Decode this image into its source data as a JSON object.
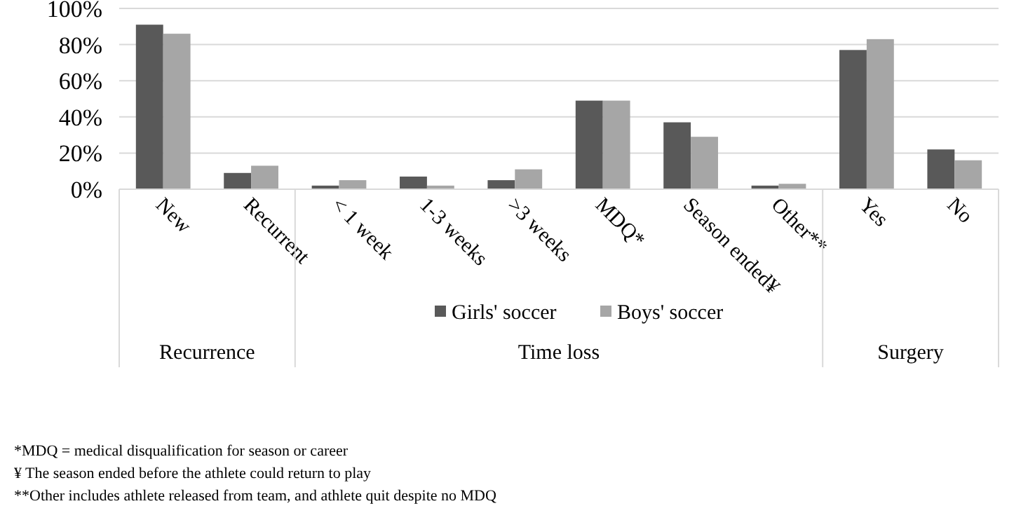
{
  "chart_data": {
    "type": "bar",
    "categories": [
      "New",
      "Recurrent",
      "< 1 week",
      "1-3 weeks",
      ">3 weeks",
      "MDQ*",
      "Season ended¥",
      "Other**",
      "Yes",
      "No"
    ],
    "series": [
      {
        "name": "Girls' soccer",
        "color": "#595959",
        "values": [
          91,
          9,
          2,
          7,
          5,
          49,
          37,
          2,
          77,
          22
        ]
      },
      {
        "name": "Boys' soccer",
        "color": "#a6a6a6",
        "values": [
          86,
          13,
          5,
          2,
          11,
          49,
          29,
          3,
          83,
          16
        ]
      }
    ],
    "ylim": [
      0,
      100
    ],
    "yticks": [
      {
        "value": 0,
        "label": "0%"
      },
      {
        "value": 20,
        "label": "20%"
      },
      {
        "value": 40,
        "label": "40%"
      },
      {
        "value": 60,
        "label": "60%"
      },
      {
        "value": 80,
        "label": "80%"
      },
      {
        "value": 100,
        "label": "100%"
      }
    ],
    "grid": "y",
    "legend": "bottom",
    "annotations": [
      "Recurrence",
      "Time loss",
      "Surgery",
      "*MDQ = medical disqualification for season or career",
      "¥ The season ended before the athlete could return to play",
      "**Other includes athlete released from team, and athlete quit despite no MDQ"
    ]
  }
}
